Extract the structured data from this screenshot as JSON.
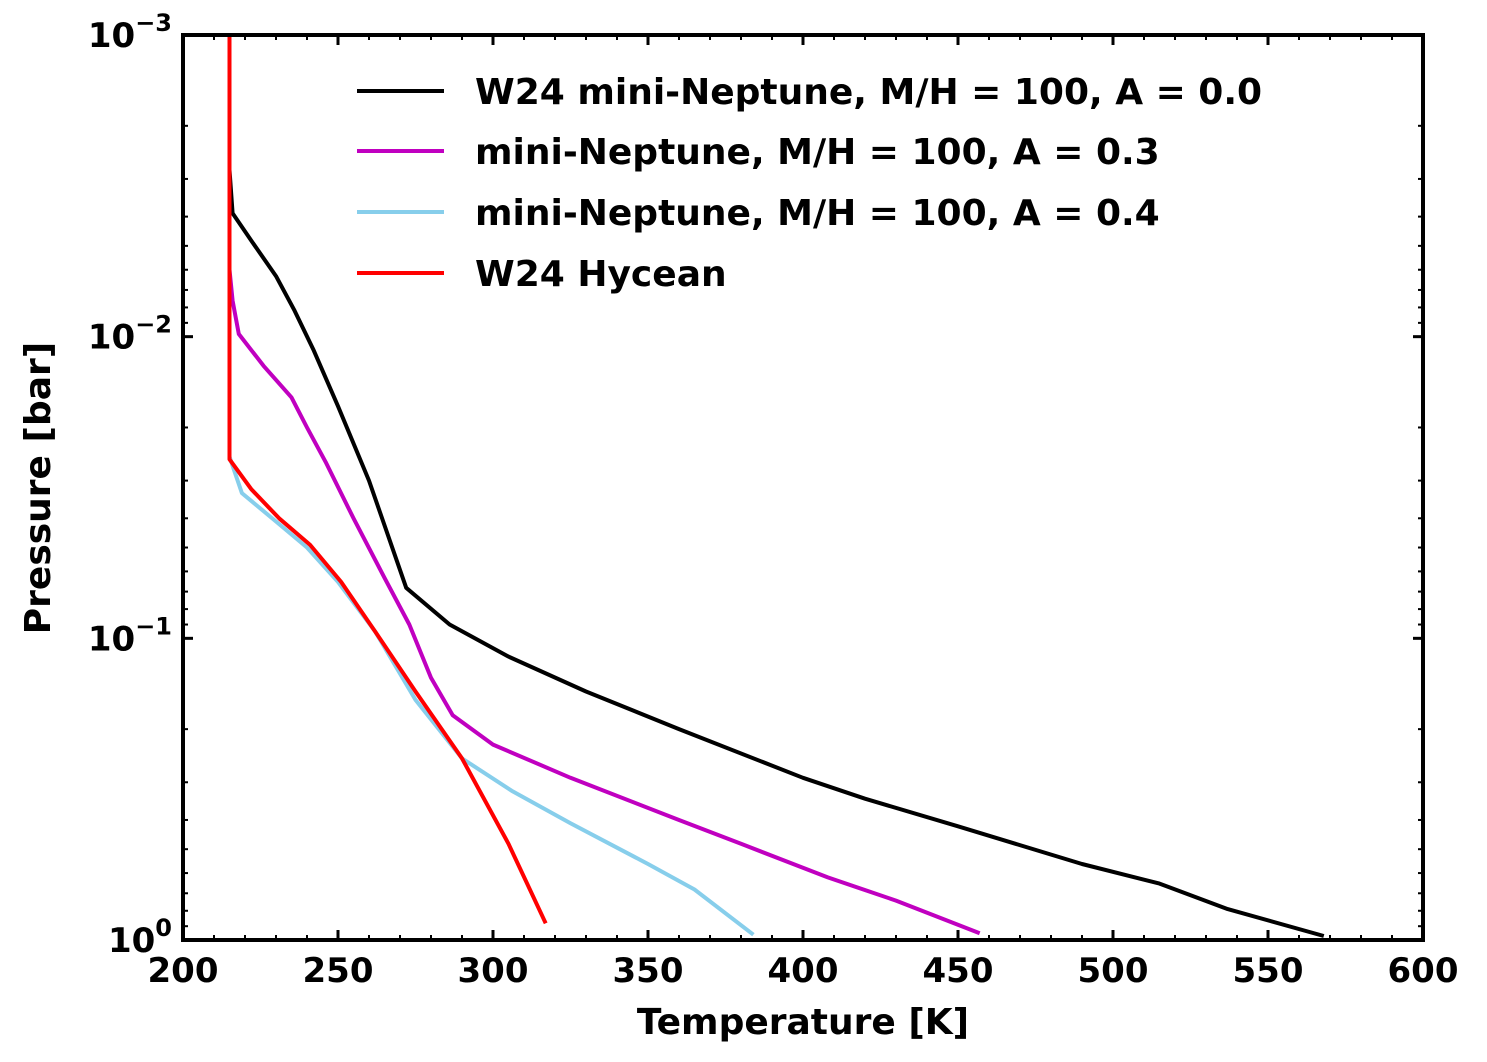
{
  "chart_data": {
    "type": "line",
    "title": "",
    "xlabel": "Temperature [K]",
    "ylabel": "Pressure [bar]",
    "xlim": [
      200,
      600
    ],
    "ylim": [
      1.0,
      0.001
    ],
    "yscale": "log",
    "x_ticks": [
      200,
      250,
      300,
      350,
      400,
      450,
      500,
      550,
      600
    ],
    "x_tick_labels": [
      "200",
      "250",
      "300",
      "350",
      "400",
      "450",
      "500",
      "550",
      "600"
    ],
    "y_ticks": [
      0.001,
      0.01,
      0.1,
      1.0
    ],
    "y_tick_labels": [
      {
        "base": "10",
        "exp": "−3"
      },
      {
        "base": "10",
        "exp": "−2"
      },
      {
        "base": "10",
        "exp": "−1"
      },
      {
        "base": "10",
        "exp": "0"
      }
    ],
    "legend_position": "top-right",
    "series": [
      {
        "name": "W24 mini-Neptune, M/H = 100, A = 0.0",
        "color": "#000000",
        "points": [
          [
            215,
            0.001
          ],
          [
            215,
            0.0028
          ],
          [
            216,
            0.0039
          ],
          [
            222,
            0.0048
          ],
          [
            230,
            0.0063
          ],
          [
            236,
            0.0082
          ],
          [
            242,
            0.011
          ],
          [
            250,
            0.017
          ],
          [
            260,
            0.03
          ],
          [
            272,
            0.068
          ],
          [
            286,
            0.09
          ],
          [
            305,
            0.115
          ],
          [
            330,
            0.15
          ],
          [
            360,
            0.2
          ],
          [
            400,
            0.29
          ],
          [
            420,
            0.34
          ],
          [
            450,
            0.42
          ],
          [
            490,
            0.56
          ],
          [
            515,
            0.65
          ],
          [
            537,
            0.79
          ],
          [
            568,
            0.97
          ]
        ]
      },
      {
        "name": "mini-Neptune, M/H = 100, A = 0.3",
        "color": "#c000c0",
        "points": [
          [
            215,
            0.001
          ],
          [
            215,
            0.006
          ],
          [
            216,
            0.0076
          ],
          [
            218,
            0.0098
          ],
          [
            226,
            0.0125
          ],
          [
            235,
            0.0159
          ],
          [
            240,
            0.02
          ],
          [
            246,
            0.026
          ],
          [
            255,
            0.04
          ],
          [
            265,
            0.063
          ],
          [
            273,
            0.09
          ],
          [
            280,
            0.135
          ],
          [
            287,
            0.18
          ],
          [
            300,
            0.225
          ],
          [
            325,
            0.29
          ],
          [
            360,
            0.4
          ],
          [
            380,
            0.48
          ],
          [
            408,
            0.62
          ],
          [
            430,
            0.74
          ],
          [
            457,
            0.95
          ]
        ]
      },
      {
        "name": "mini-Neptune, M/H = 100, A = 0.4",
        "color": "#87ceeb",
        "points": [
          [
            215,
            0.001
          ],
          [
            215,
            0.025
          ],
          [
            219,
            0.033
          ],
          [
            230,
            0.041
          ],
          [
            240,
            0.05
          ],
          [
            250,
            0.065
          ],
          [
            262,
            0.095
          ],
          [
            275,
            0.16
          ],
          [
            290,
            0.25
          ],
          [
            306,
            0.32
          ],
          [
            325,
            0.41
          ],
          [
            350,
            0.56
          ],
          [
            365,
            0.68
          ],
          [
            384,
            0.96
          ]
        ]
      },
      {
        "name": "W24 Hycean",
        "color": "#ff0000",
        "points": [
          [
            215,
            0.001
          ],
          [
            215,
            0.0255
          ],
          [
            222,
            0.032
          ],
          [
            231,
            0.04
          ],
          [
            241,
            0.049
          ],
          [
            251,
            0.065
          ],
          [
            262,
            0.095
          ],
          [
            275,
            0.15
          ],
          [
            290,
            0.25
          ],
          [
            305,
            0.48
          ],
          [
            317,
            0.88
          ]
        ]
      }
    ]
  }
}
